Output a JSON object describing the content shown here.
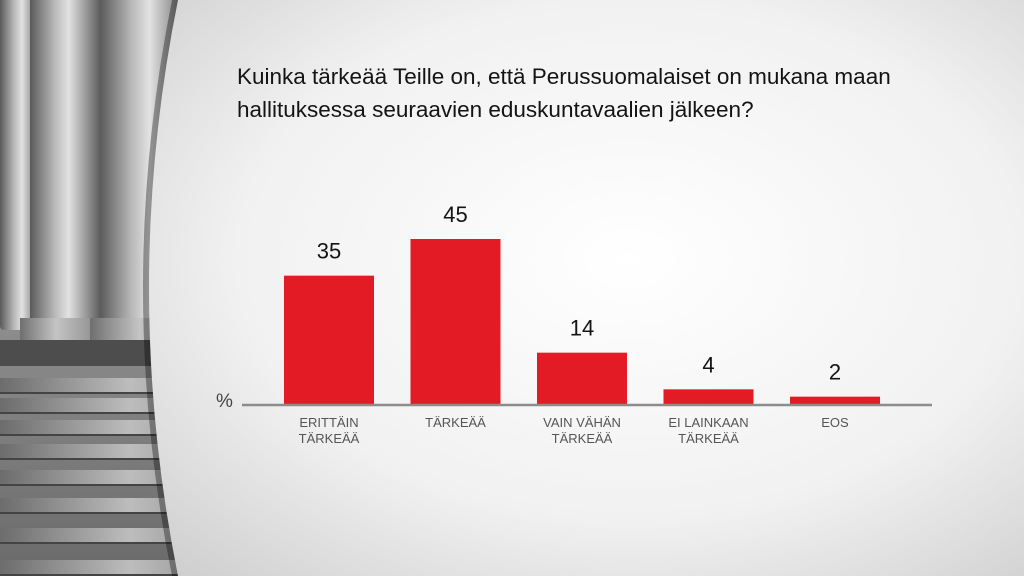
{
  "chart_data": {
    "type": "bar",
    "title": "Kuinka tärkeää Teille on, että Perussuomalaiset on mukana maan hallituksessa seuraavien eduskuntavaalien jälkeen?",
    "unit_label": "%",
    "categories": [
      [
        "ERITTÄIN",
        "TÄRKEÄÄ"
      ],
      [
        "TÄRKEÄÄ"
      ],
      [
        "VAIN VÄHÄN",
        "TÄRKEÄÄ"
      ],
      [
        "EI LAINKAAN",
        "TÄRKEÄÄ"
      ],
      [
        "EOS"
      ]
    ],
    "values": [
      35,
      45,
      14,
      4,
      2
    ],
    "data_labels": [
      "35",
      "45",
      "14",
      "4",
      "2"
    ],
    "ylim": [
      0,
      45
    ],
    "grid": false,
    "legend": "none",
    "bar_color": "#e31b25"
  }
}
